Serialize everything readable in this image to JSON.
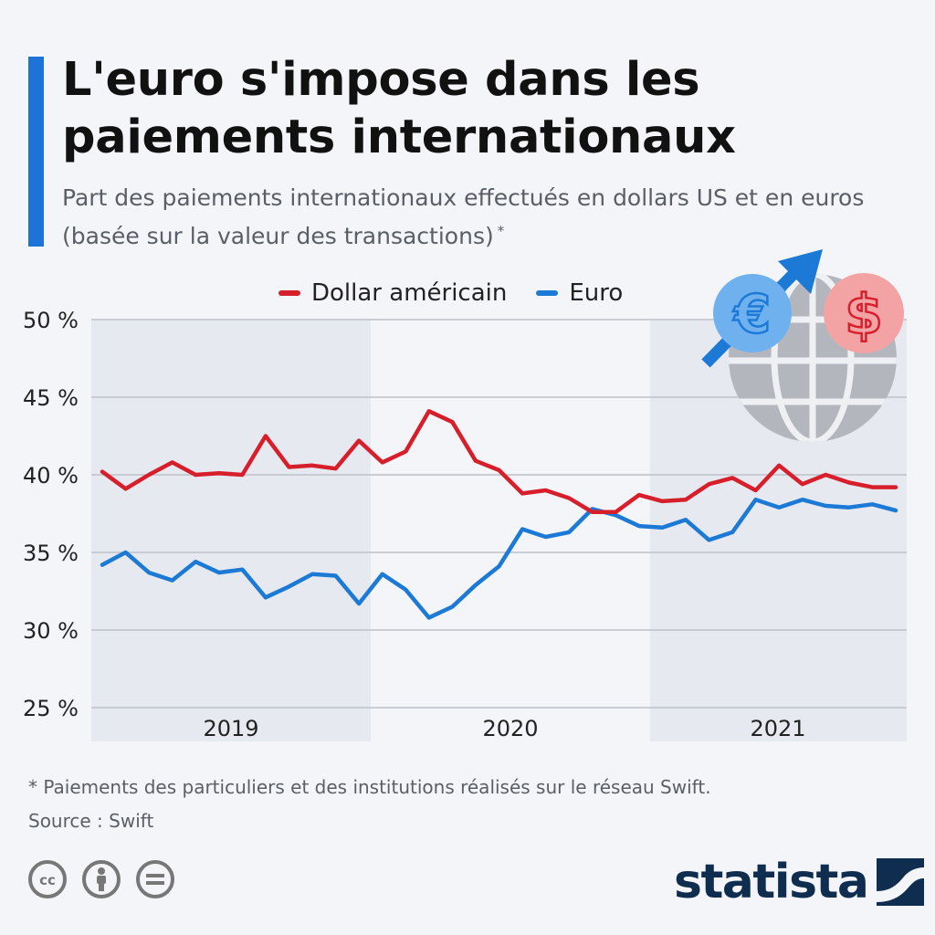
{
  "header": {
    "title": "L'euro s'impose dans les paiements internationaux",
    "subtitle": "Part des paiements internationaux effectués en dollars US et en euros (basée sur la valeur des transactions)",
    "subtitle_marker": "*"
  },
  "footer": {
    "note": "* Paiements des particuliers et des institutions réalisés sur le réseau Swift.",
    "source": "Source : Swift",
    "brand": "statista"
  },
  "colors": {
    "dollar": "#d71f2b",
    "euro": "#1c7ad6",
    "accent": "#1c73d8",
    "brand": "#0f2d4f"
  },
  "icons": [
    "euro-coin-icon",
    "dollar-coin-icon",
    "globe-icon",
    "rising-arrow-icon",
    "cc-icon",
    "attribution-icon",
    "no-derivatives-icon",
    "statista-logo-icon"
  ],
  "chart_data": {
    "type": "line",
    "title": "",
    "xlabel": "",
    "ylabel": "",
    "ylim": [
      25,
      50
    ],
    "yticks": [
      50,
      45,
      40,
      35,
      30,
      25
    ],
    "ytick_labels": [
      "50 %",
      "45 %",
      "40 %",
      "35 %",
      "30 %",
      "25 %"
    ],
    "year_labels": [
      "2019",
      "2020",
      "2021"
    ],
    "x": [
      "2019-01",
      "2019-02",
      "2019-03",
      "2019-04",
      "2019-05",
      "2019-06",
      "2019-07",
      "2019-08",
      "2019-09",
      "2019-10",
      "2019-11",
      "2019-12",
      "2020-01",
      "2020-02",
      "2020-03",
      "2020-04",
      "2020-05",
      "2020-06",
      "2020-07",
      "2020-08",
      "2020-09",
      "2020-10",
      "2020-11",
      "2020-12",
      "2021-01",
      "2021-02",
      "2021-03",
      "2021-04",
      "2021-05",
      "2021-06",
      "2021-07",
      "2021-08",
      "2021-09",
      "2021-10",
      "2021-11"
    ],
    "legend_position": "top-center",
    "grid": true,
    "series": [
      {
        "name": "Dollar américain",
        "color": "#d71f2b",
        "values": [
          40.2,
          39.1,
          40.0,
          40.8,
          40.0,
          40.1,
          40.0,
          42.5,
          40.5,
          40.6,
          40.4,
          42.2,
          40.8,
          41.5,
          44.1,
          43.4,
          40.9,
          40.3,
          38.8,
          39.0,
          38.5,
          37.6,
          37.6,
          38.7,
          38.3,
          38.4,
          39.4,
          39.8,
          39.0,
          40.6,
          39.4,
          40.0,
          39.5,
          39.2,
          39.2
        ]
      },
      {
        "name": "Euro",
        "color": "#1c7ad6",
        "values": [
          34.2,
          35.0,
          33.7,
          33.2,
          34.4,
          33.7,
          33.9,
          32.1,
          32.8,
          33.6,
          33.5,
          31.7,
          33.6,
          32.6,
          30.8,
          31.5,
          32.9,
          34.1,
          36.5,
          36.0,
          36.3,
          37.8,
          37.4,
          36.7,
          36.6,
          37.1,
          35.8,
          36.3,
          38.4,
          37.9,
          38.4,
          38.0,
          37.9,
          38.1,
          37.7
        ]
      }
    ]
  }
}
